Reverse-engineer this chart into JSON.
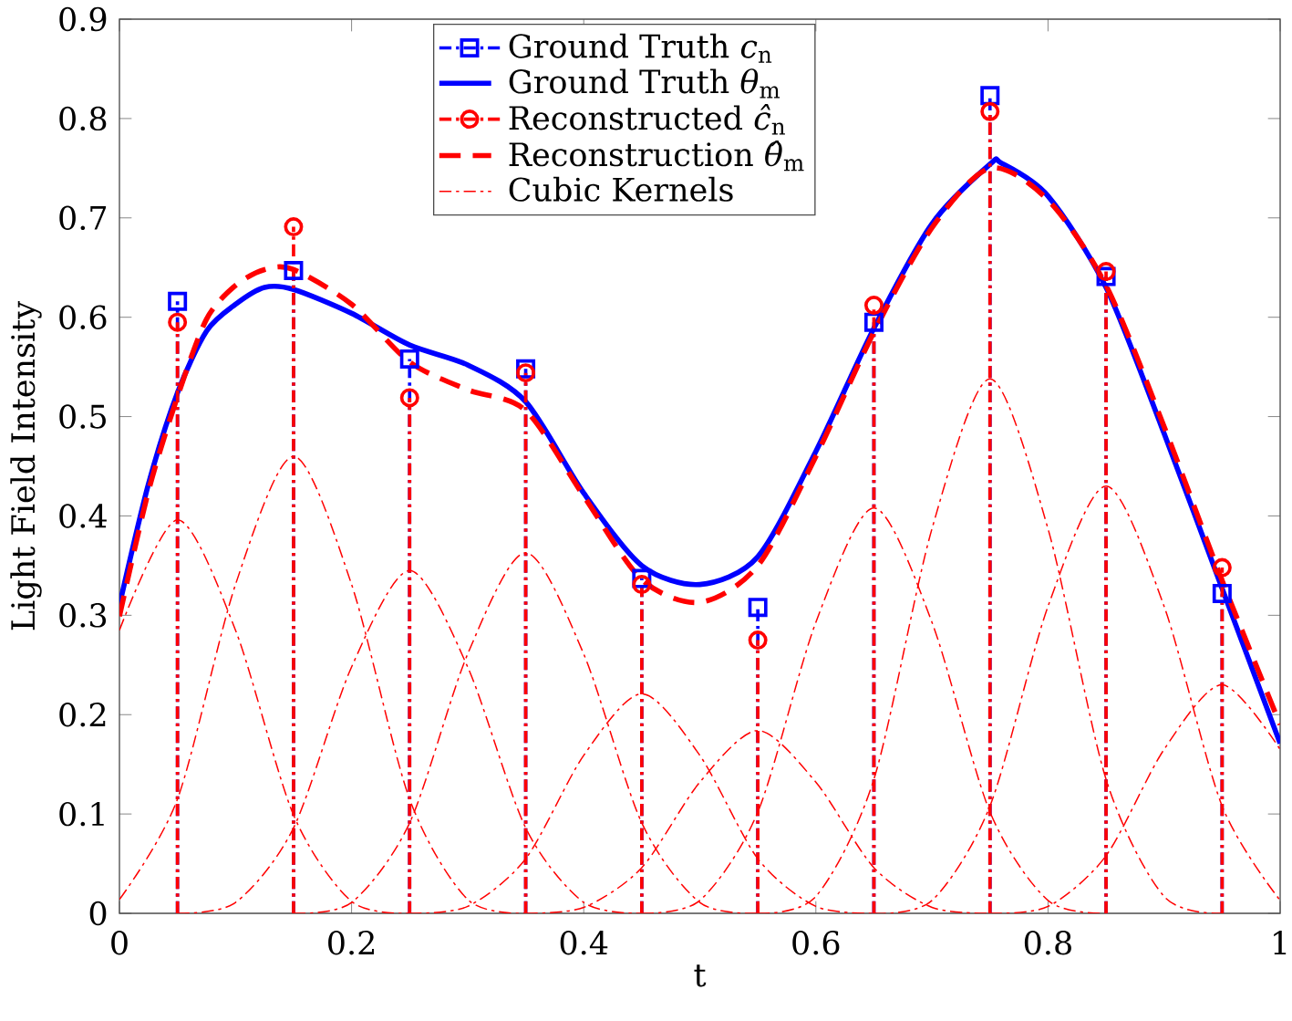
{
  "chart_data": {
    "type": "line",
    "xlabel": "t",
    "ylabel": "Light Field Intensity",
    "xlim": [
      0,
      1
    ],
    "ylim": [
      0,
      0.9
    ],
    "xticks": [
      0,
      0.2,
      0.4,
      0.6,
      0.8,
      1
    ],
    "yticks": [
      0,
      0.1,
      0.2,
      0.3,
      0.4,
      0.5,
      0.6,
      0.7,
      0.8,
      0.9
    ],
    "legend": "top",
    "series": [
      {
        "name": "Ground Truth *c*$_{n}$",
        "type": "lollipop",
        "color": "#0000ff",
        "marker": "square",
        "line_style": "dashdot",
        "x": [
          0.05,
          0.15,
          0.25,
          0.35,
          0.45,
          0.55,
          0.65,
          0.75,
          0.85,
          0.95
        ],
        "values": [
          0.616,
          0.647,
          0.558,
          0.548,
          0.337,
          0.308,
          0.595,
          0.823,
          0.641,
          0.322
        ]
      },
      {
        "name": "Ground Truth *θ*$_{m}$",
        "color": "#0000ff",
        "line_style": "solid",
        "x": [
          0,
          0.025,
          0.05,
          0.075,
          0.1,
          0.125,
          0.15,
          0.2,
          0.25,
          0.3,
          0.35,
          0.4,
          0.45,
          0.5,
          0.55,
          0.6,
          0.65,
          0.7,
          0.75,
          0.76,
          0.8,
          0.85,
          0.9,
          0.95,
          1
        ],
        "values": [
          0.31,
          0.432,
          0.524,
          0.586,
          0.613,
          0.63,
          0.628,
          0.604,
          0.572,
          0.552,
          0.515,
          0.423,
          0.35,
          0.331,
          0.359,
          0.465,
          0.589,
          0.694,
          0.754,
          0.755,
          0.722,
          0.63,
          0.483,
          0.327,
          0.171
        ]
      },
      {
        "name": "Reconstructed *ĉ*$_{n}$",
        "type": "lollipop",
        "color": "#ff0000",
        "marker": "circle",
        "line_style": "dashdot",
        "x": [
          0.05,
          0.15,
          0.25,
          0.35,
          0.45,
          0.55,
          0.65,
          0.75,
          0.85,
          0.95
        ],
        "values": [
          0.595,
          0.691,
          0.519,
          0.544,
          0.331,
          0.275,
          0.612,
          0.807,
          0.646,
          0.348
        ]
      },
      {
        "name": "Reconstruction *θ̂*$_{m}$",
        "color": "#ff0000",
        "line_style": "dashed",
        "x": [
          0,
          0.025,
          0.05,
          0.075,
          0.1,
          0.125,
          0.15,
          0.2,
          0.25,
          0.3,
          0.35,
          0.4,
          0.45,
          0.5,
          0.55,
          0.6,
          0.65,
          0.7,
          0.75,
          0.8,
          0.85,
          0.9,
          0.95,
          1
        ],
        "values": [
          0.299,
          0.425,
          0.52,
          0.598,
          0.632,
          0.648,
          0.648,
          0.613,
          0.555,
          0.527,
          0.506,
          0.42,
          0.336,
          0.313,
          0.35,
          0.46,
          0.585,
          0.69,
          0.75,
          0.718,
          0.632,
          0.49,
          0.335,
          0.19
        ]
      },
      {
        "name": "Cubic Kernels",
        "color": "#ff0000",
        "line_style": "dashdot",
        "x": [
          0,
          0.05,
          0.1,
          0.15,
          0.2,
          0.25
        ],
        "values": [
          0.285,
          0.396,
          0.285,
          0.099,
          0.012,
          0
        ]
      },
      {
        "color": "#ff0000",
        "line_style": "dashdot",
        "x": [
          0,
          0.05,
          0.1,
          0.15,
          0.2,
          0.25,
          0.3,
          0.35
        ],
        "values": [
          0.014,
          0.115,
          0.331,
          0.46,
          0.331,
          0.115,
          0.014,
          0
        ]
      },
      {
        "color": "#ff0000",
        "line_style": "dashdot",
        "x": [
          0.05,
          0.1,
          0.15,
          0.2,
          0.25,
          0.3,
          0.35,
          0.4,
          0.45
        ],
        "values": [
          0,
          0.011,
          0.086,
          0.248,
          0.345,
          0.248,
          0.086,
          0.011,
          0
        ]
      },
      {
        "color": "#ff0000",
        "line_style": "dashdot",
        "x": [
          0.15,
          0.2,
          0.25,
          0.3,
          0.35,
          0.4,
          0.45,
          0.5,
          0.55
        ],
        "values": [
          0,
          0.011,
          0.091,
          0.261,
          0.363,
          0.261,
          0.091,
          0.011,
          0
        ]
      },
      {
        "color": "#ff0000",
        "line_style": "dashdot",
        "x": [
          0.25,
          0.3,
          0.35,
          0.4,
          0.45,
          0.5,
          0.55,
          0.6,
          0.65
        ],
        "values": [
          0,
          0.007,
          0.055,
          0.159,
          0.221,
          0.159,
          0.055,
          0.007,
          0
        ]
      },
      {
        "color": "#ff0000",
        "line_style": "dashdot",
        "x": [
          0.35,
          0.4,
          0.45,
          0.5,
          0.55,
          0.6,
          0.65,
          0.7,
          0.75
        ],
        "values": [
          0,
          0.006,
          0.046,
          0.132,
          0.184,
          0.132,
          0.046,
          0.006,
          0
        ]
      },
      {
        "color": "#ff0000",
        "line_style": "dashdot",
        "x": [
          0.45,
          0.5,
          0.55,
          0.6,
          0.65,
          0.7,
          0.75,
          0.8,
          0.85
        ],
        "values": [
          0,
          0.013,
          0.102,
          0.293,
          0.408,
          0.293,
          0.102,
          0.013,
          0
        ]
      },
      {
        "color": "#ff0000",
        "line_style": "dashdot",
        "x": [
          0.55,
          0.6,
          0.65,
          0.7,
          0.75,
          0.8,
          0.85,
          0.9,
          0.95
        ],
        "values": [
          0,
          0.017,
          0.135,
          0.387,
          0.538,
          0.387,
          0.135,
          0.017,
          0
        ]
      },
      {
        "color": "#ff0000",
        "line_style": "dashdot",
        "x": [
          0.65,
          0.7,
          0.75,
          0.8,
          0.85,
          0.9,
          0.95,
          1
        ],
        "values": [
          0,
          0.013,
          0.108,
          0.309,
          0.43,
          0.309,
          0.108,
          0.013
        ]
      },
      {
        "color": "#ff0000",
        "line_style": "dashdot",
        "x": [
          0.75,
          0.8,
          0.85,
          0.9,
          0.95,
          1
        ],
        "values": [
          0,
          0.007,
          0.058,
          0.165,
          0.23,
          0.165
        ]
      }
    ]
  }
}
